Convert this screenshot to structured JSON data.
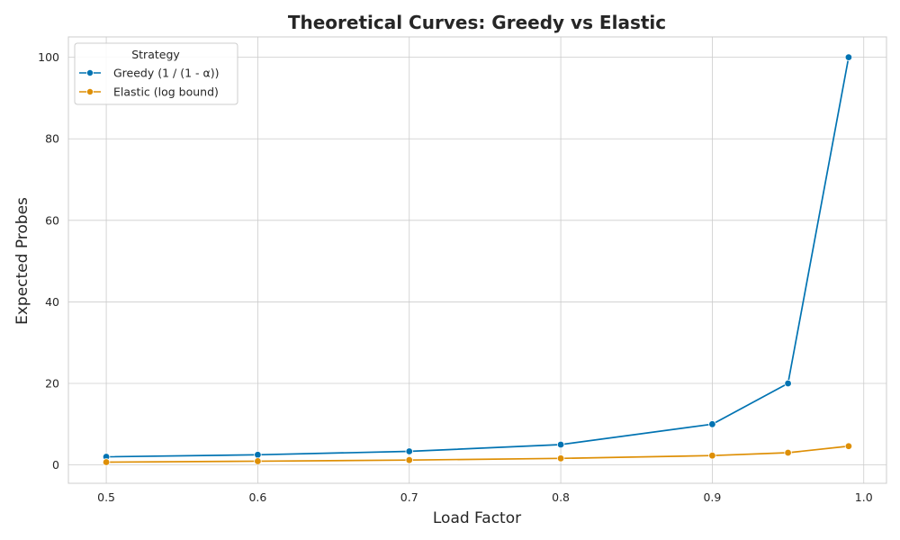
{
  "chart_data": {
    "type": "line",
    "title": "Theoretical Curves: Greedy vs Elastic",
    "xlabel": "Load Factor",
    "ylabel": "Expected Probes",
    "x": [
      0.5,
      0.6,
      0.7,
      0.8,
      0.9,
      0.95,
      0.99
    ],
    "xlim": [
      0.475,
      1.015
    ],
    "ylim": [
      -4.5,
      105
    ],
    "xticks": [
      0.5,
      0.6,
      0.7,
      0.8,
      0.9,
      1.0
    ],
    "xtick_labels": [
      "0.5",
      "0.6",
      "0.7",
      "0.8",
      "0.9",
      "1.0"
    ],
    "yticks": [
      0,
      20,
      40,
      60,
      80,
      100
    ],
    "ytick_labels": [
      "0",
      "20",
      "40",
      "60",
      "80",
      "100"
    ],
    "grid": true,
    "legend": {
      "title": "Strategy",
      "placement": "top-left"
    },
    "series": [
      {
        "name": "Greedy (1 / (1 - α))",
        "color": "#0173b2",
        "values": [
          2.0,
          2.5,
          3.33,
          5.0,
          10.0,
          20.0,
          100.0
        ]
      },
      {
        "name": "Elastic (log bound)",
        "color": "#de8f05",
        "values": [
          0.69,
          0.92,
          1.2,
          1.61,
          2.3,
          3.0,
          4.61
        ]
      }
    ]
  }
}
